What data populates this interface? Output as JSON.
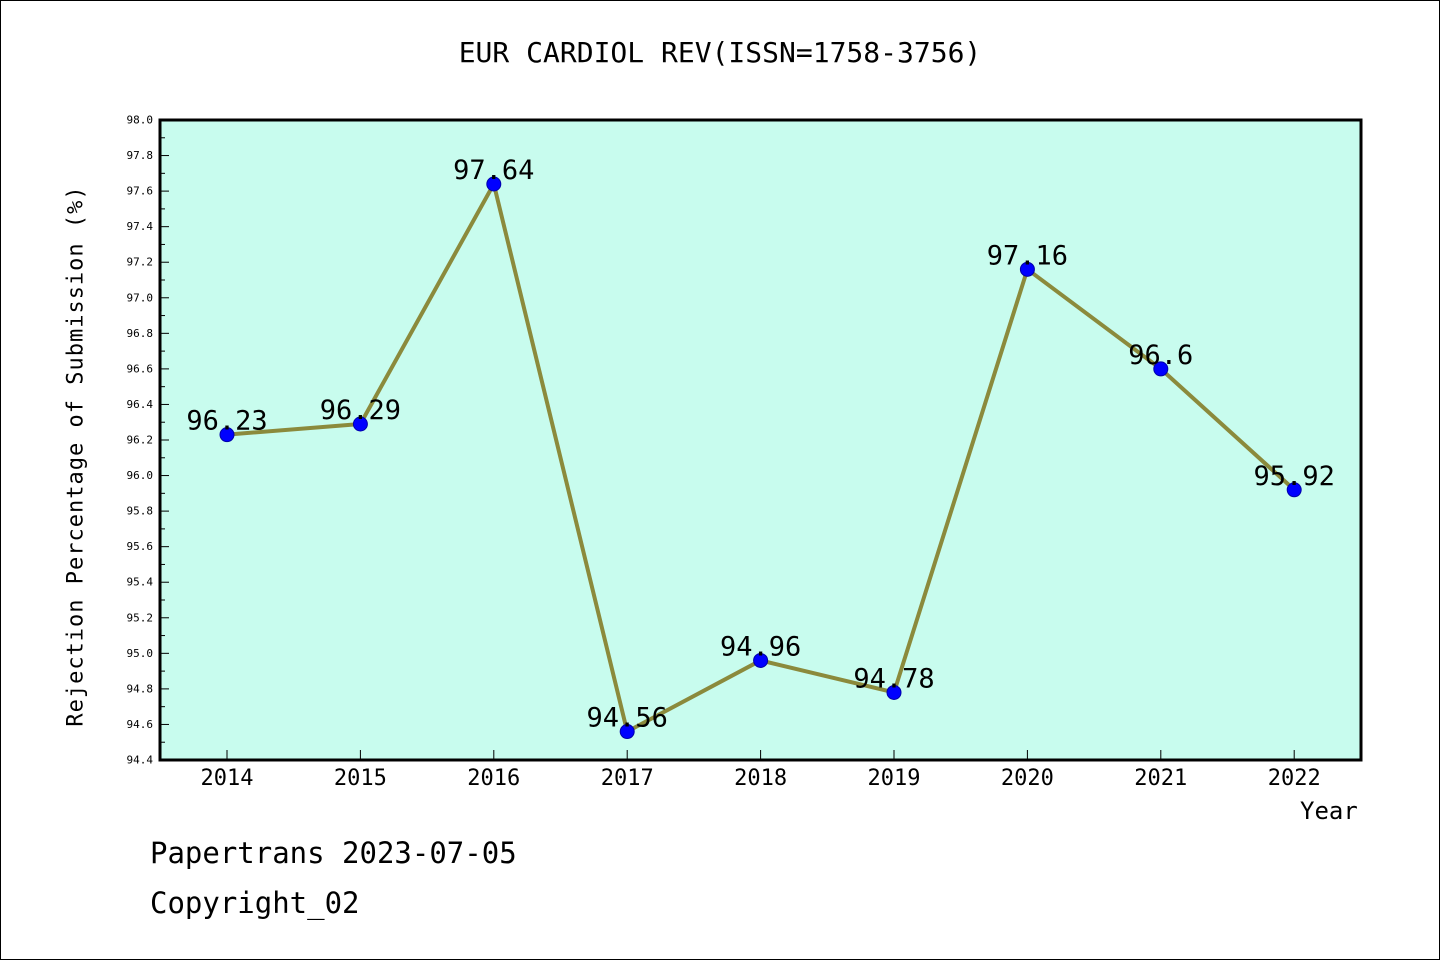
{
  "chart_data": {
    "type": "line",
    "title": "EUR CARDIOL REV(ISSN=1758-3756)",
    "xlabel": "Year",
    "ylabel": "Rejection Percentage of Submission (%)",
    "x": [
      "2014",
      "2015",
      "2016",
      "2017",
      "2018",
      "2019",
      "2020",
      "2021",
      "2022"
    ],
    "series": [
      {
        "values": [
          96.23,
          96.29,
          97.64,
          94.56,
          94.96,
          94.78,
          97.16,
          96.6,
          95.92
        ]
      }
    ],
    "data_labels": [
      "96.23",
      "96.29",
      "97.64",
      "94.56",
      "94.96",
      "94.78",
      "97.16",
      "96.6",
      "95.92"
    ],
    "ylim": [
      94.4,
      98.0
    ],
    "yticks": [
      "94.4",
      "94.6",
      "94.8",
      "95.0",
      "95.2",
      "95.4",
      "95.6",
      "95.8",
      "96.0",
      "96.2",
      "96.4",
      "96.6",
      "96.8",
      "97.0",
      "97.2",
      "97.4",
      "97.6",
      "97.8",
      "98.0"
    ],
    "grid": false,
    "colors": {
      "plot_background": "#c8fcee",
      "line": "#8b8a3c",
      "marker": "#0000ff"
    }
  },
  "footer": {
    "line1": "Papertrans 2023-07-05",
    "line2": "Copyright_02"
  }
}
